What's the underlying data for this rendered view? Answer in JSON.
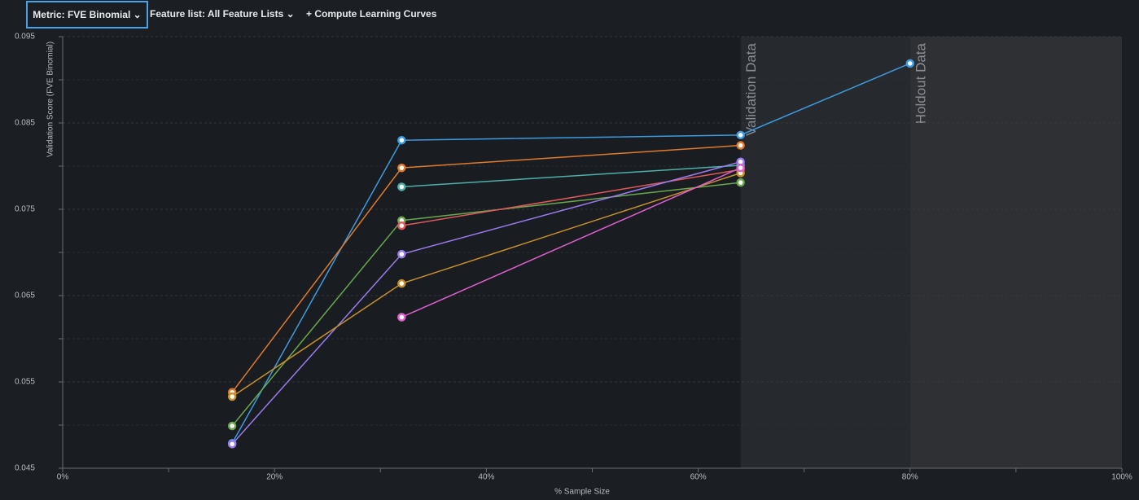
{
  "toolbar": {
    "metric": "Metric: FVE Binomial",
    "feature_list": "Feature list: All Feature Lists",
    "compute": "+ Compute Learning Curves"
  },
  "chart_data": {
    "type": "line",
    "x_label": "% Sample Size",
    "y_label": "Validation Score (FVE Binomial)",
    "x": [
      16,
      32,
      64,
      80
    ],
    "xlim": [
      0,
      100
    ],
    "xticks": [
      {
        "value": 0,
        "label": "0%"
      },
      {
        "value": 20,
        "label": "20%"
      },
      {
        "value": 40,
        "label": "40%"
      },
      {
        "value": 60,
        "label": "60%"
      },
      {
        "value": 80,
        "label": "80%"
      },
      {
        "value": 100,
        "label": "100%"
      }
    ],
    "xminorticks": [
      10,
      30,
      50,
      70,
      90
    ],
    "ylim": [
      0.045,
      0.095
    ],
    "yticks": [
      0.045,
      0.055,
      0.065,
      0.075,
      0.085,
      0.095
    ],
    "yminorticks": [
      0.05,
      0.06,
      0.07,
      0.08,
      0.09
    ],
    "grid": true,
    "regions": [
      {
        "label": "Validation Data",
        "start": 64,
        "end": 80,
        "color": "#26292d"
      },
      {
        "label": "Holdout Data",
        "start": 80,
        "end": 100,
        "color": "#2e3034"
      }
    ],
    "series": [
      {
        "color": "#3d9be0",
        "values": [
          0.0479,
          0.083,
          0.0836,
          0.0919
        ]
      },
      {
        "color": "#e07b2c",
        "values": [
          0.0538,
          0.0798,
          0.0824,
          null
        ]
      },
      {
        "color": "#4fb0a8",
        "values": [
          null,
          0.0776,
          0.0801,
          null
        ]
      },
      {
        "color": "#6aa84f",
        "values": [
          0.0499,
          0.0737,
          0.0781,
          null
        ]
      },
      {
        "color": "#e05a5a",
        "values": [
          null,
          0.0731,
          0.0796,
          null
        ]
      },
      {
        "color": "#9b7bf0",
        "values": [
          0.0478,
          0.0698,
          0.0805,
          null
        ]
      },
      {
        "color": "#c8902c",
        "values": [
          0.0533,
          0.0664,
          0.0792,
          null
        ]
      },
      {
        "color": "#e060d0",
        "values": [
          null,
          0.0625,
          0.0798,
          null
        ]
      }
    ]
  }
}
